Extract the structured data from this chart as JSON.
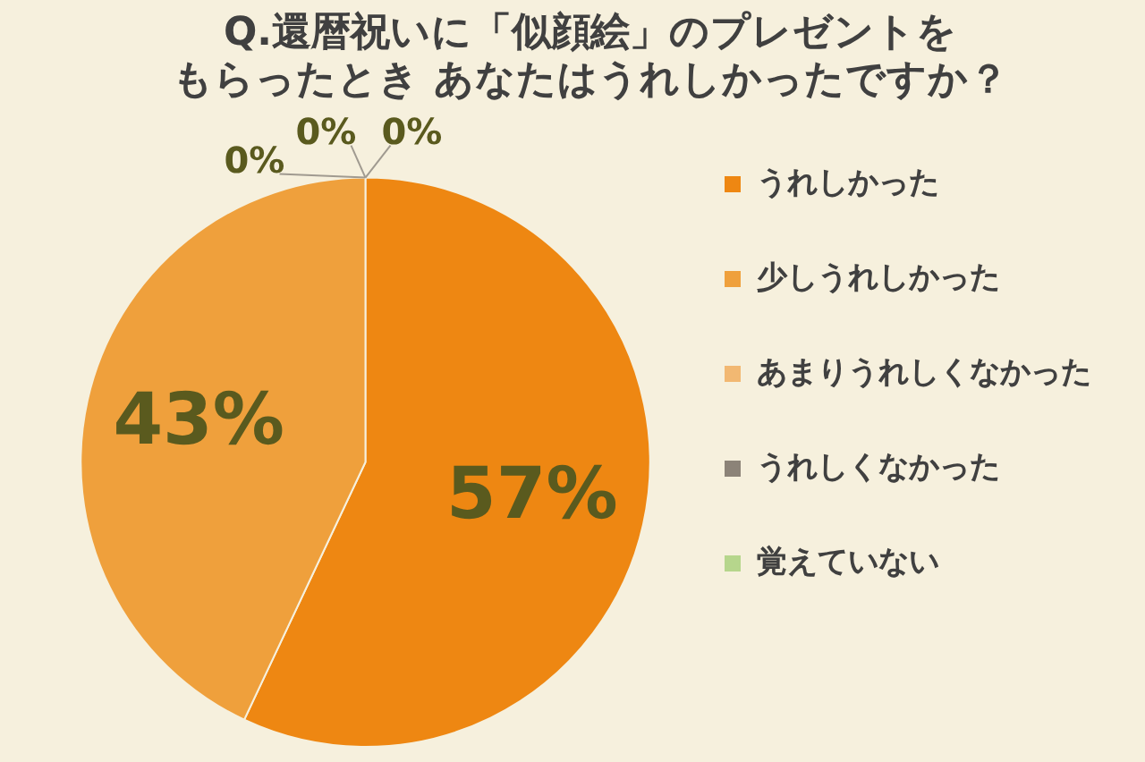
{
  "chart_data": {
    "type": "pie",
    "title": "Q.還暦祝いに「似顔絵」のプレゼントをもらったとき あなたはうれしかったですか？",
    "categories": [
      "うれしかった",
      "少しうれしかった",
      "あまりうれしくなかった",
      "うれしくなかった",
      "覚えていない"
    ],
    "values": [
      57,
      43,
      0,
      0,
      0
    ],
    "colors": [
      "#ee8712",
      "#efa03c",
      "#f2b872",
      "#8c8378",
      "#b6d68c"
    ],
    "value_labels": [
      "57%",
      "43%",
      "0%",
      "0%",
      "0%"
    ],
    "legend": "right"
  }
}
